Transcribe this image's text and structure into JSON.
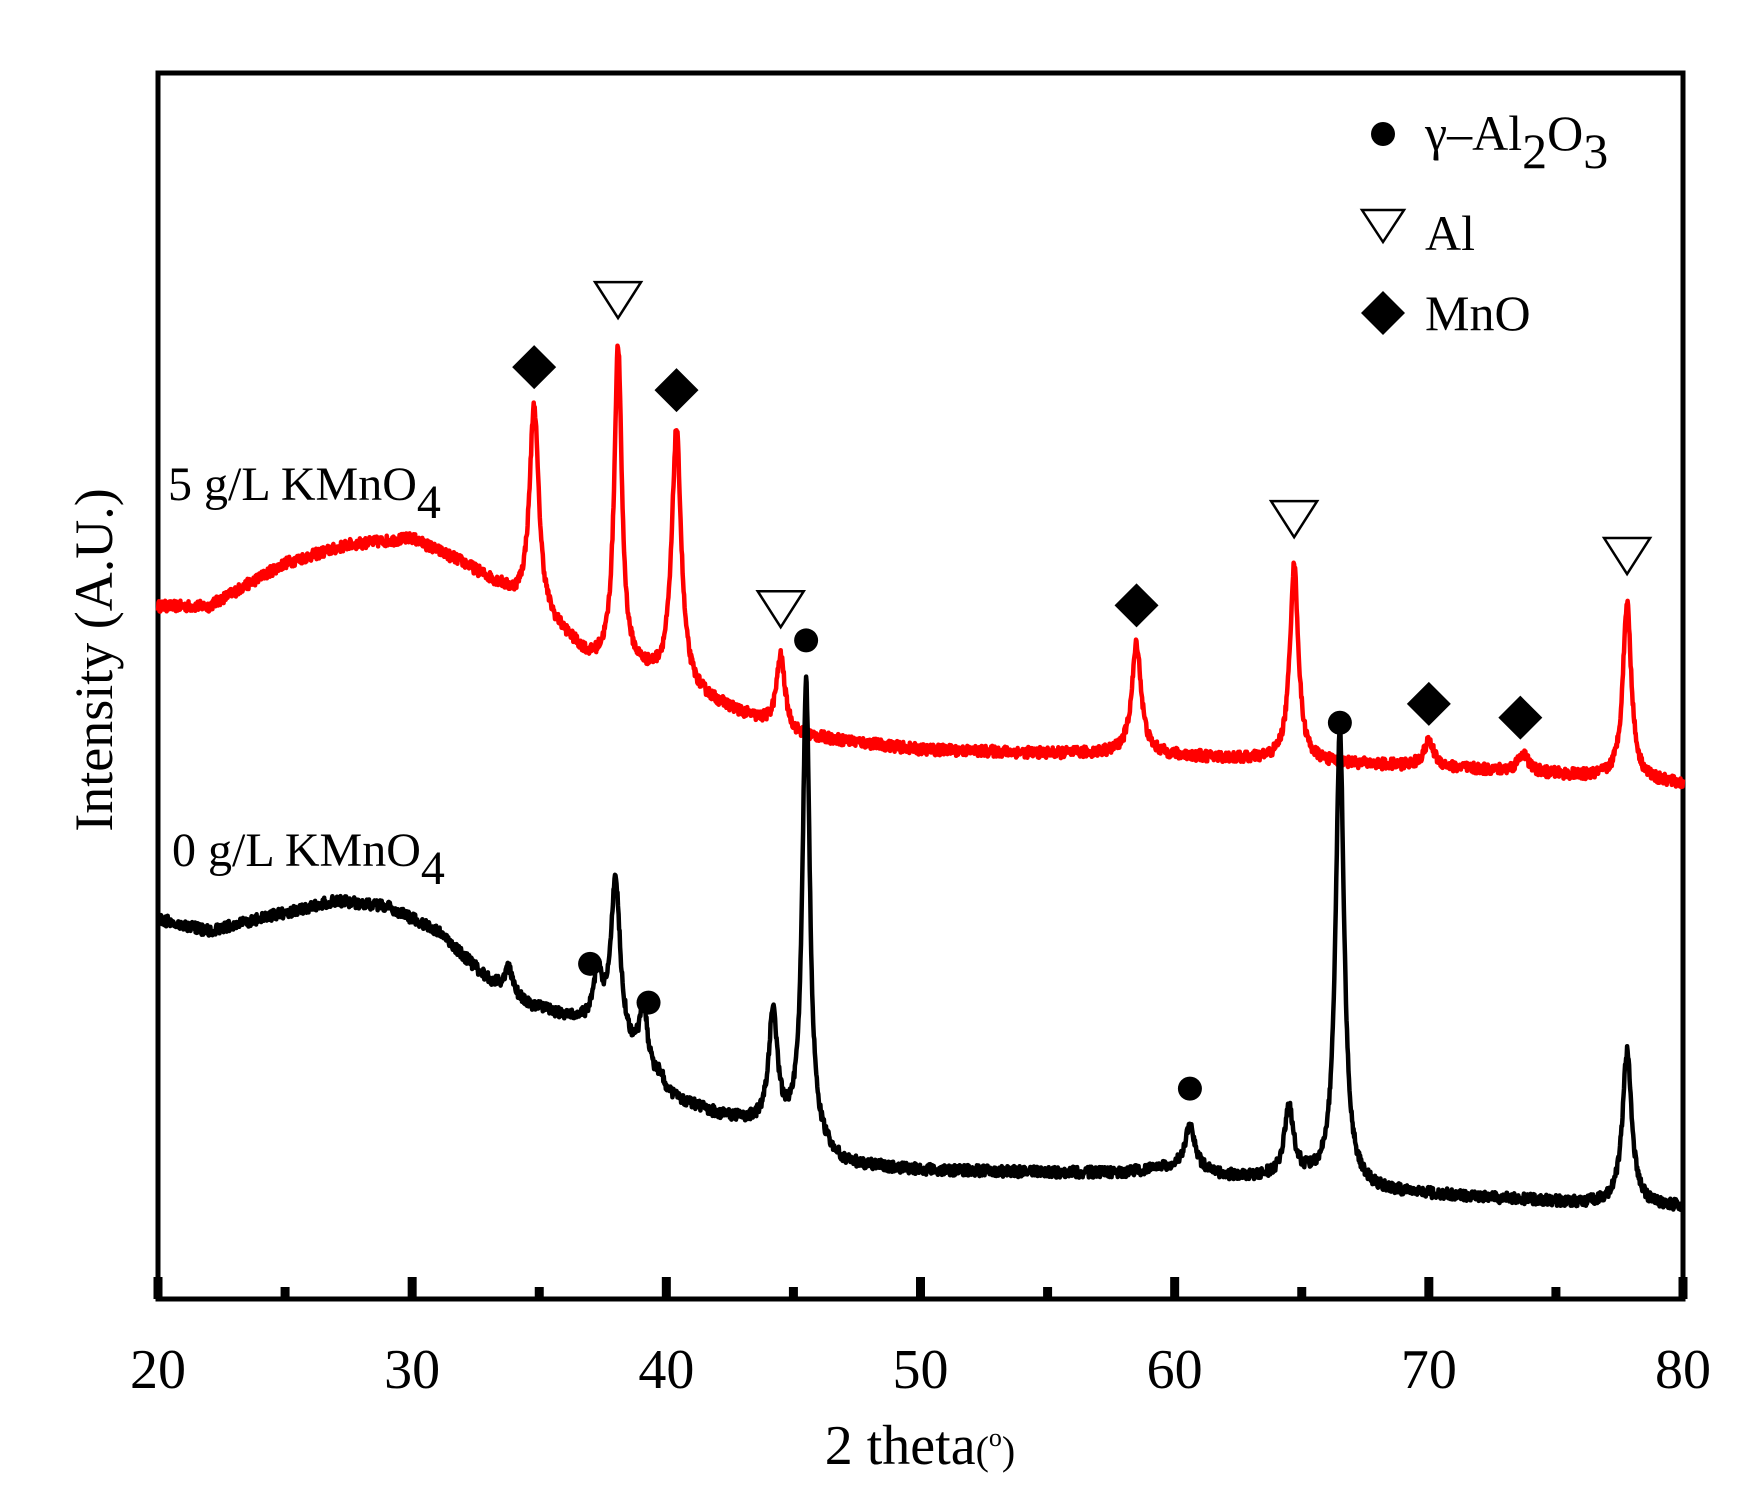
{
  "chart_data": {
    "type": "line",
    "title": "",
    "xlabel_main": "2 theta",
    "xlabel_unit": "(",
    "xlabel_unit_sup": "o",
    "xlabel_unit_close": ")",
    "ylabel": "Intensity (A.U.)",
    "xlim": [
      20,
      80
    ],
    "ylim": [
      0,
      100
    ],
    "x_ticks": [
      "20",
      "30",
      "40",
      "50",
      "60",
      "70",
      "80"
    ],
    "x_tick_values": [
      20,
      30,
      40,
      50,
      60,
      70,
      80
    ],
    "x_minor_ticks": [
      25,
      35,
      45,
      55,
      65,
      75
    ],
    "y_ticks_shown": false,
    "series": [
      {
        "name": "5 g/L KMnO4",
        "label_text": "5 g/L KMnO",
        "label_sub": "4",
        "color": "#ff0000",
        "baseline": [
          [
            20,
            56.5
          ],
          [
            22,
            56.5
          ],
          [
            25,
            60
          ],
          [
            27.5,
            61.5
          ],
          [
            30,
            62
          ],
          [
            32,
            60
          ],
          [
            33.5,
            58
          ],
          [
            34,
            57
          ],
          [
            36,
            54
          ],
          [
            37,
            52
          ],
          [
            39,
            51
          ],
          [
            42,
            48.5
          ],
          [
            45,
            46
          ],
          [
            47,
            45.5
          ],
          [
            50,
            44.8
          ],
          [
            55,
            44.5
          ],
          [
            58,
            44.5
          ],
          [
            60,
            44.3
          ],
          [
            65,
            43.8
          ],
          [
            70,
            43.4
          ],
          [
            75,
            42.8
          ],
          [
            78,
            42.3
          ],
          [
            80,
            42
          ]
        ],
        "hump_extra": [
          [
            25,
            1
          ],
          [
            27,
            3
          ],
          [
            28.5,
            3
          ],
          [
            30.5,
            2.5
          ]
        ],
        "peaks": [
          {
            "x": 34.8,
            "height": 17,
            "width": 0.22
          },
          {
            "x": 38.1,
            "height": 26,
            "width": 0.18
          },
          {
            "x": 40.4,
            "height": 21,
            "width": 0.22
          },
          {
            "x": 44.5,
            "height": 6,
            "width": 0.2
          },
          {
            "x": 58.5,
            "height": 9,
            "width": 0.22
          },
          {
            "x": 64.7,
            "height": 16,
            "width": 0.2
          },
          {
            "x": 70.0,
            "height": 2,
            "width": 0.25
          },
          {
            "x": 73.7,
            "height": 1.5,
            "width": 0.25
          },
          {
            "x": 77.8,
            "height": 14.5,
            "width": 0.2
          }
        ],
        "markers": [
          {
            "x": 34.8,
            "symbol": "diamond"
          },
          {
            "x": 38.1,
            "symbol": "triangle"
          },
          {
            "x": 40.4,
            "symbol": "diamond"
          },
          {
            "x": 44.5,
            "symbol": "triangle"
          },
          {
            "x": 58.5,
            "symbol": "diamond"
          },
          {
            "x": 64.7,
            "symbol": "triangle"
          },
          {
            "x": 66.5,
            "symbol": "circle"
          },
          {
            "x": 70.0,
            "symbol": "diamond"
          },
          {
            "x": 73.6,
            "symbol": "diamond"
          },
          {
            "x": 77.8,
            "symbol": "triangle"
          }
        ]
      },
      {
        "name": "0 g/L KMnO4",
        "label_text": "0 g/L KMnO",
        "label_sub": "4",
        "color": "#000000",
        "baseline": [
          [
            20,
            31
          ],
          [
            22,
            30
          ],
          [
            24,
            31
          ],
          [
            26,
            32
          ],
          [
            27,
            32.5
          ],
          [
            29,
            32
          ],
          [
            31,
            30
          ],
          [
            33,
            26
          ],
          [
            34.5,
            24
          ],
          [
            36,
            23
          ],
          [
            37.5,
            22
          ],
          [
            39,
            19
          ],
          [
            40,
            16.5
          ],
          [
            42,
            15
          ],
          [
            44,
            14
          ],
          [
            45,
            13.5
          ],
          [
            47,
            11
          ],
          [
            50,
            10.5
          ],
          [
            55,
            10.3
          ],
          [
            58,
            10.3
          ],
          [
            60,
            10.7
          ],
          [
            62,
            10
          ],
          [
            65,
            9.8
          ],
          [
            68,
            8.8
          ],
          [
            72,
            8.3
          ],
          [
            76,
            7.8
          ],
          [
            80,
            7.5
          ]
        ],
        "hump_extra": [],
        "peaks": [
          {
            "x": 33.8,
            "height": 2,
            "width": 0.2
          },
          {
            "x": 37.3,
            "height": 4,
            "width": 0.2
          },
          {
            "x": 38.0,
            "height": 13,
            "width": 0.22
          },
          {
            "x": 39.1,
            "height": 5,
            "width": 0.18
          },
          {
            "x": 39.8,
            "height": 1,
            "width": 0.2
          },
          {
            "x": 44.2,
            "height": 9.5,
            "width": 0.2
          },
          {
            "x": 45.5,
            "height": 37.5,
            "width": 0.17
          },
          {
            "x": 60.6,
            "height": 3.5,
            "width": 0.25
          },
          {
            "x": 64.5,
            "height": 5.5,
            "width": 0.22
          },
          {
            "x": 66.5,
            "height": 37,
            "width": 0.2
          },
          {
            "x": 77.8,
            "height": 12.5,
            "width": 0.22
          }
        ],
        "markers": [
          {
            "x": 37.0,
            "symbol": "circle"
          },
          {
            "x": 39.3,
            "symbol": "circle"
          },
          {
            "x": 45.5,
            "symbol": "circle"
          },
          {
            "x": 60.6,
            "symbol": "circle"
          }
        ]
      }
    ],
    "legend": {
      "placement": "top-right",
      "entries": [
        {
          "symbol": "circle",
          "label": "γ–Al",
          "sub1": "2",
          "mid": "O",
          "sub2": "3"
        },
        {
          "symbol": "triangle",
          "label": "Al"
        },
        {
          "symbol": "diamond",
          "label": "MnO"
        }
      ]
    }
  }
}
